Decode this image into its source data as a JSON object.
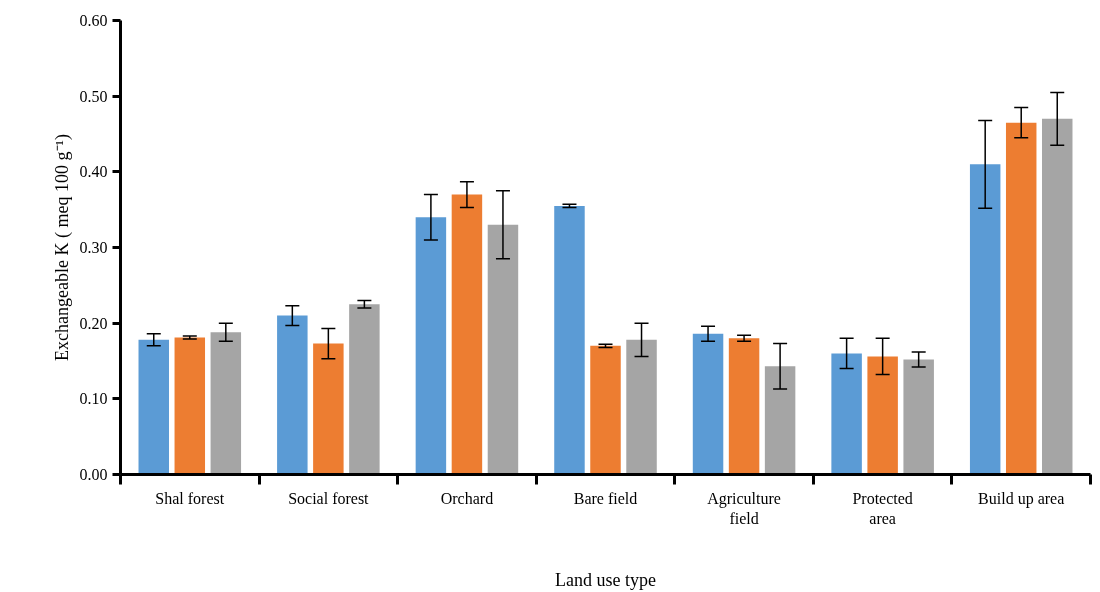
{
  "chart_data": {
    "type": "bar",
    "xlabel": "Land use type",
    "ylabel": "Exchangeable K ( meq 100 g⁻¹)",
    "categories": [
      "Shal forest",
      "Social forest",
      "Orchard",
      "Bare field",
      "Agriculture\nfield",
      "Protected\narea",
      "Build up area"
    ],
    "series": [
      {
        "color": "#5b9bd5",
        "values": [
          0.178,
          0.21,
          0.34,
          0.355,
          0.186,
          0.16,
          0.41
        ],
        "errors": [
          0.008,
          0.013,
          0.03,
          0.002,
          0.01,
          0.02,
          0.058
        ]
      },
      {
        "color": "#ed7d31",
        "values": [
          0.181,
          0.173,
          0.37,
          0.17,
          0.18,
          0.156,
          0.465
        ],
        "errors": [
          0.002,
          0.02,
          0.017,
          0.002,
          0.004,
          0.024,
          0.02
        ]
      },
      {
        "color": "#a5a5a5",
        "values": [
          0.188,
          0.225,
          0.33,
          0.178,
          0.143,
          0.152,
          0.47
        ],
        "errors": [
          0.012,
          0.005,
          0.045,
          0.022,
          0.03,
          0.01,
          0.035
        ]
      }
    ],
    "ylim": [
      0,
      0.6
    ],
    "yticks": [
      {
        "value": 0,
        "label": "0.00"
      },
      {
        "value": 0.1,
        "label": "0.10"
      },
      {
        "value": 0.2,
        "label": "0.20"
      },
      {
        "value": 0.3,
        "label": "0.30"
      },
      {
        "value": 0.4,
        "label": "0.40"
      },
      {
        "value": 0.5,
        "label": "0.50"
      },
      {
        "value": 0.6,
        "label": "0.60"
      }
    ],
    "grid": false
  }
}
